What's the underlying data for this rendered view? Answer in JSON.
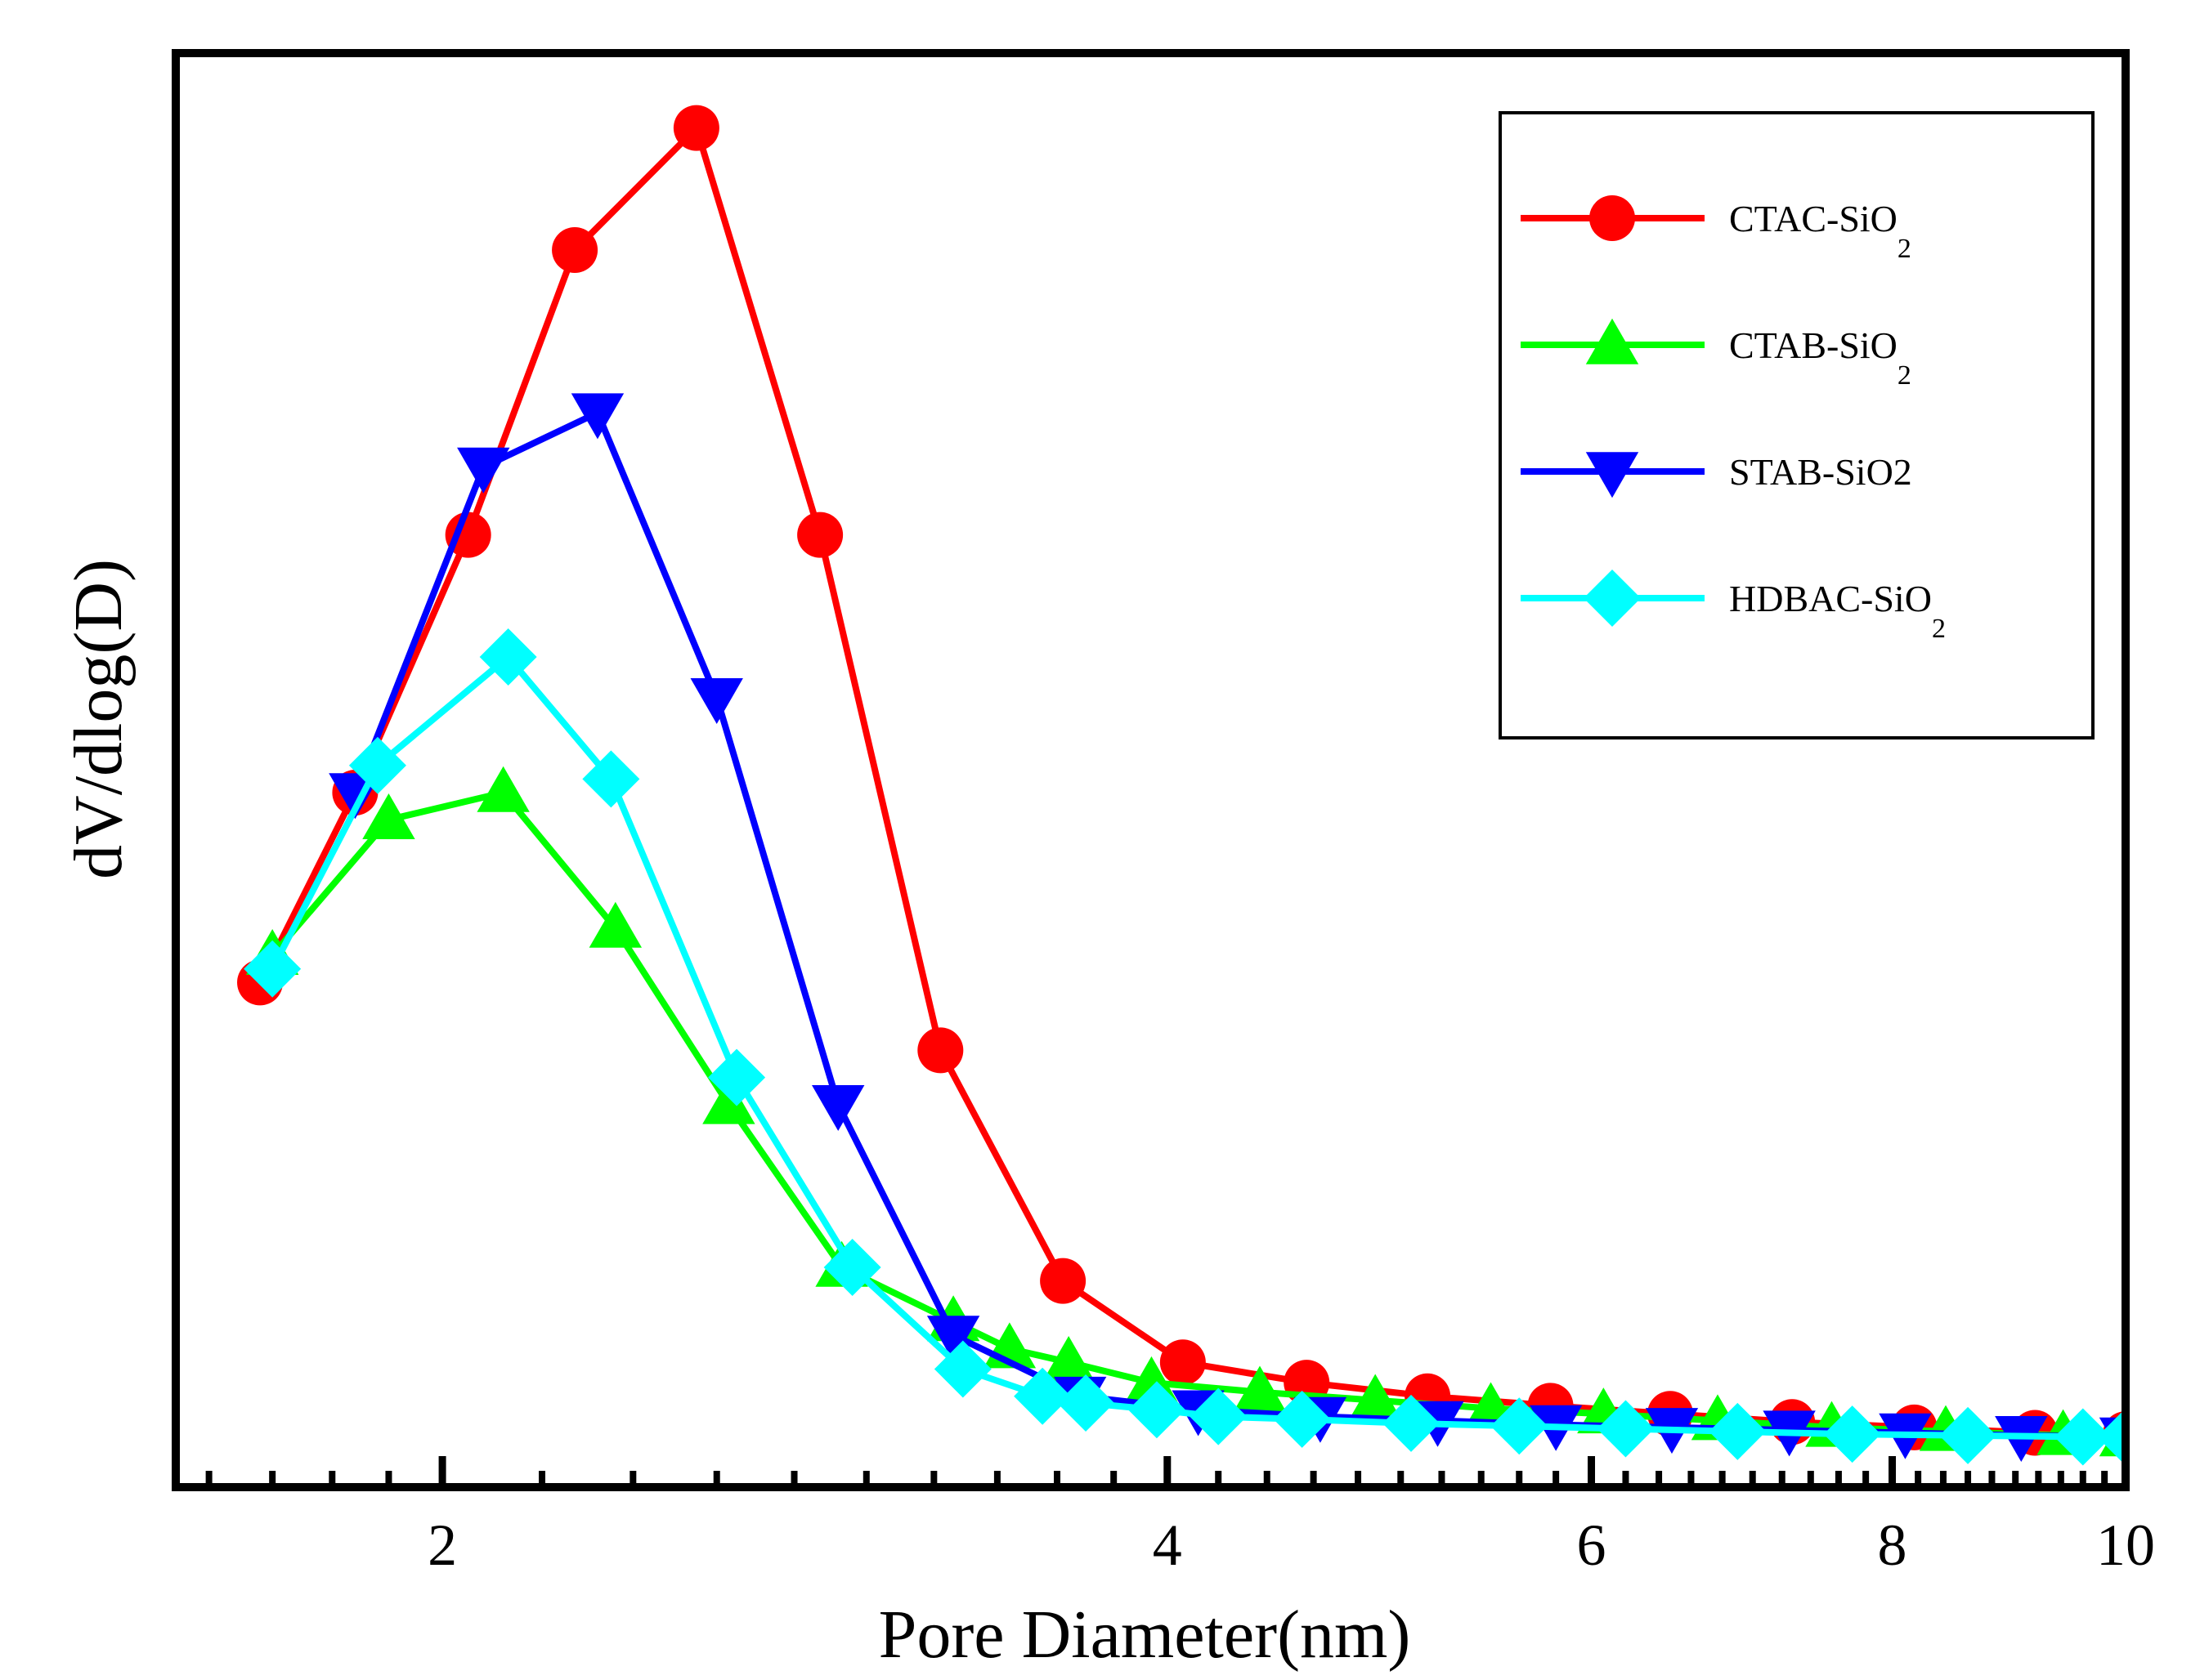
{
  "chart_data": {
    "type": "line",
    "title": "",
    "xlabel": "Pore Diameter(nm)",
    "ylabel": "dV/dlog(D)",
    "x_scale": "log",
    "xlim": [
      1.55,
      10
    ],
    "ylim": [
      0,
      1.0
    ],
    "x_ticks": [
      2,
      4,
      6,
      8,
      10
    ],
    "x_tick_labels": [
      "2",
      "4",
      "6",
      "8",
      "10"
    ],
    "y_ticks_labeled": false,
    "grid": false,
    "legend_position": "top-right",
    "series": [
      {
        "name": "CTAC-SiO2",
        "label_main": "CTAC-SiO",
        "label_sub": "2",
        "color": "#ff0000",
        "marker": "circle",
        "x": [
          1.68,
          1.84,
          2.05,
          2.27,
          2.55,
          2.87,
          3.22,
          3.62,
          4.06,
          4.57,
          5.13,
          5.77,
          6.47,
          7.27,
          8.17,
          9.17,
          10.0
        ],
        "y": [
          0.36,
          0.5,
          0.69,
          0.9,
          0.99,
          0.69,
          0.31,
          0.14,
          0.08,
          0.065,
          0.055,
          0.048,
          0.042,
          0.036,
          0.032,
          0.028,
          0.027
        ]
      },
      {
        "name": "CTAB-SiO2",
        "label_main": "CTAB-SiO",
        "label_sub": "2",
        "color": "#00ff00",
        "marker": "triangle-up",
        "x": [
          1.7,
          1.9,
          2.12,
          2.36,
          2.63,
          2.93,
          3.26,
          3.44,
          3.64,
          3.94,
          4.37,
          4.88,
          5.45,
          6.07,
          6.77,
          7.55,
          8.42,
          9.42,
          10.0
        ],
        "y": [
          0.38,
          0.48,
          0.5,
          0.4,
          0.27,
          0.15,
          0.11,
          0.09,
          0.08,
          0.065,
          0.058,
          0.052,
          0.046,
          0.042,
          0.037,
          0.032,
          0.029,
          0.026,
          0.025
        ]
      },
      {
        "name": "STAB-SiO2",
        "label_main": "STAB-SiO2",
        "label_sub": "",
        "color": "#0000ff",
        "marker": "triangle-down",
        "x": [
          1.84,
          2.08,
          2.32,
          2.6,
          2.92,
          3.26,
          3.68,
          4.12,
          4.63,
          5.18,
          5.8,
          6.48,
          7.25,
          8.1,
          9.05,
          10.0
        ],
        "y": [
          0.5,
          0.74,
          0.78,
          0.57,
          0.27,
          0.1,
          0.055,
          0.045,
          0.04,
          0.037,
          0.034,
          0.032,
          0.03,
          0.028,
          0.026,
          0.025
        ]
      },
      {
        "name": "HDBAC-SiO2",
        "label_main": "HDBAC-SiO",
        "label_sub": "2",
        "color": "#00ffff",
        "marker": "diamond",
        "x": [
          1.7,
          1.88,
          2.13,
          2.35,
          2.65,
          2.96,
          3.29,
          3.55,
          3.7,
          3.96,
          4.2,
          4.55,
          5.05,
          5.6,
          6.2,
          6.9,
          7.7,
          8.6,
          9.6,
          10.0
        ],
        "y": [
          0.37,
          0.52,
          0.6,
          0.51,
          0.29,
          0.15,
          0.075,
          0.055,
          0.05,
          0.045,
          0.04,
          0.038,
          0.035,
          0.033,
          0.031,
          0.029,
          0.027,
          0.026,
          0.025,
          0.025
        ]
      }
    ]
  }
}
